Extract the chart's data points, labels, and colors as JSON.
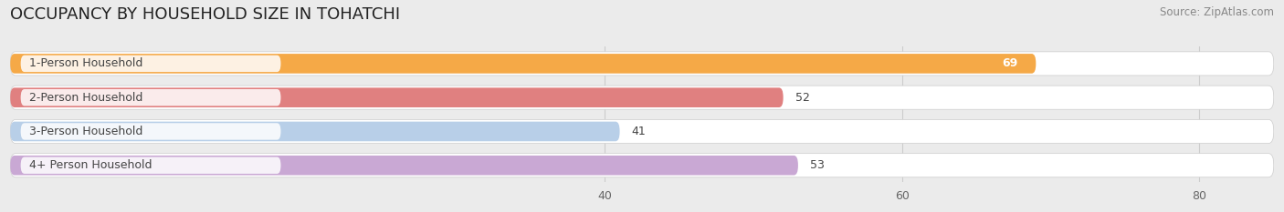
{
  "title": "OCCUPANCY BY HOUSEHOLD SIZE IN TOHATCHI",
  "source": "Source: ZipAtlas.com",
  "categories": [
    "1-Person Household",
    "2-Person Household",
    "3-Person Household",
    "4+ Person Household"
  ],
  "values": [
    69,
    52,
    41,
    53
  ],
  "bar_colors": [
    "#f5a947",
    "#e08080",
    "#b8cfe8",
    "#c9a8d4"
  ],
  "background_color": "#ebebeb",
  "bar_bg_color": "#f5f5f5",
  "xlim": [
    0,
    85
  ],
  "xticks": [
    40,
    60,
    80
  ],
  "title_fontsize": 13,
  "label_fontsize": 9,
  "value_fontsize": 9,
  "source_fontsize": 8.5
}
